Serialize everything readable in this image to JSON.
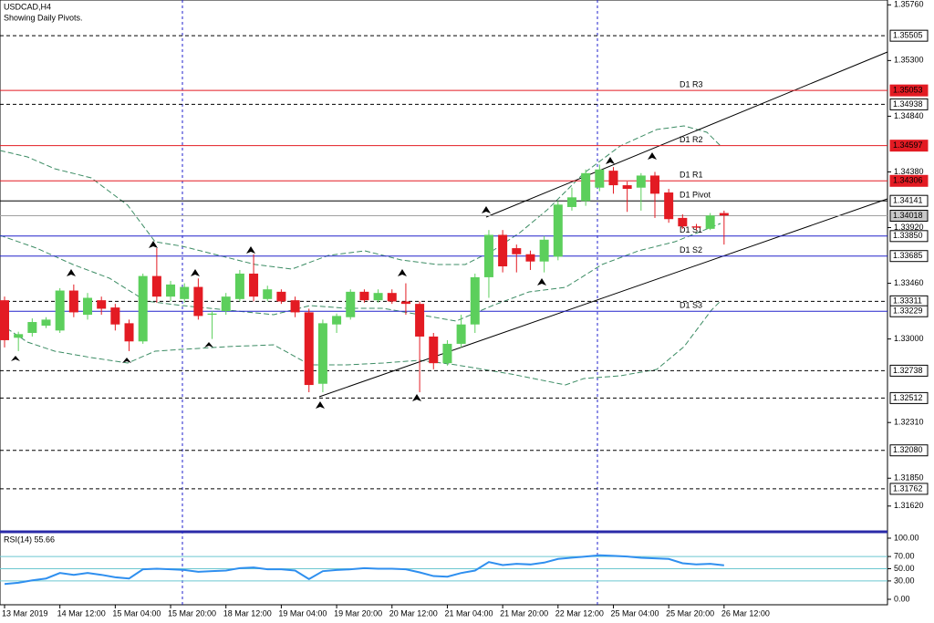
{
  "chart_data": [
    {
      "type": "candlestick",
      "title": "USDCAD,H4",
      "subtitle": "Showing Daily Pivots.",
      "up_color": "#5ccf5c",
      "down_color": "#e31b23",
      "categories": [
        "13 Mar 2019",
        null,
        null,
        null,
        "14 Mar 12:00",
        null,
        null,
        null,
        "15 Mar 04:00",
        null,
        null,
        null,
        "15 Mar 20:00",
        null,
        null,
        null,
        "18 Mar 12:00",
        null,
        null,
        null,
        "19 Mar 04:00",
        null,
        null,
        null,
        "19 Mar 20:00",
        null,
        null,
        null,
        "20 Mar 12:00",
        null,
        null,
        null,
        "21 Mar 04:00",
        null,
        null,
        null,
        "21 Mar 20:00",
        null,
        null,
        null,
        "22 Mar 12:00",
        null,
        null,
        null,
        "25 Mar 04:00",
        null,
        null,
        null,
        "25 Mar 20:00",
        null,
        null,
        null,
        "26 Mar 12:00"
      ],
      "open": [
        1.3332,
        1.3301,
        1.3305,
        1.3311,
        1.3307,
        1.334,
        1.332,
        1.3332,
        1.3326,
        1.3313,
        1.3298,
        1.3352,
        1.3335,
        1.3333,
        1.3343,
        1.332,
        1.3323,
        1.3333,
        1.3354,
        1.3333,
        1.3339,
        1.3332,
        1.3322,
        1.3263,
        1.3312,
        1.3318,
        1.3339,
        1.3332,
        1.3338,
        1.3331,
        1.3329,
        1.3302,
        1.328,
        1.3296,
        1.3312,
        1.3351,
        1.3386,
        1.3375,
        1.337,
        1.3364,
        1.3368,
        1.3409,
        1.3414,
        1.3425,
        1.3439,
        1.3427,
        1.3425,
        1.3435,
        1.3421,
        1.34,
        1.3393,
        1.3391,
        1.3404
      ],
      "high": [
        1.3335,
        1.3306,
        1.3317,
        1.3318,
        1.3342,
        1.3345,
        1.3338,
        1.3335,
        1.3329,
        1.3316,
        1.3354,
        1.3375,
        1.3348,
        1.3346,
        1.335,
        1.3323,
        1.3338,
        1.3357,
        1.337,
        1.3344,
        1.3341,
        1.3335,
        1.3325,
        1.3316,
        1.3321,
        1.3341,
        1.3341,
        1.3341,
        1.3341,
        1.3346,
        1.3331,
        1.3305,
        1.3299,
        1.332,
        1.3354,
        1.339,
        1.339,
        1.3378,
        1.3373,
        1.3385,
        1.3414,
        1.3425,
        1.344,
        1.3444,
        1.3442,
        1.343,
        1.3437,
        1.3438,
        1.3424,
        1.3403,
        1.3395,
        1.3404,
        1.3406
      ],
      "low": [
        1.3293,
        1.329,
        1.3302,
        1.3309,
        1.3305,
        1.3318,
        1.3316,
        1.332,
        1.3307,
        1.329,
        1.3296,
        1.333,
        1.3331,
        1.333,
        1.3316,
        1.33,
        1.332,
        1.3331,
        1.3331,
        1.3331,
        1.3329,
        1.3318,
        1.3256,
        1.3256,
        1.3305,
        1.3316,
        1.333,
        1.333,
        1.3329,
        1.332,
        1.3256,
        1.3275,
        1.3278,
        1.3293,
        1.3305,
        1.3334,
        1.3355,
        1.3355,
        1.3357,
        1.3355,
        1.3365,
        1.3406,
        1.341,
        1.3422,
        1.342,
        1.3405,
        1.3406,
        1.34,
        1.3396,
        1.3391,
        1.339,
        1.339,
        1.3378
      ],
      "close": [
        1.3299,
        1.3304,
        1.3314,
        1.3316,
        1.334,
        1.3322,
        1.3334,
        1.3325,
        1.3312,
        1.3298,
        1.3352,
        1.3335,
        1.3345,
        1.3343,
        1.3319,
        1.3321,
        1.3335,
        1.3354,
        1.3335,
        1.3341,
        1.3331,
        1.3322,
        1.3262,
        1.3313,
        1.3319,
        1.3339,
        1.3332,
        1.3338,
        1.3331,
        1.3329,
        1.3302,
        1.328,
        1.3296,
        1.3312,
        1.3351,
        1.3386,
        1.336,
        1.337,
        1.3364,
        1.3382,
        1.3411,
        1.3417,
        1.3437,
        1.344,
        1.3427,
        1.3424,
        1.3435,
        1.342,
        1.3399,
        1.3393,
        1.3392,
        1.3402,
        1.3402
      ],
      "ylim": [
        1.3143,
        1.358
      ],
      "yticks": [
        {
          "value": 1.3576,
          "label": "1.35760"
        },
        {
          "value": 1.353,
          "label": "1.35300"
        },
        {
          "value": 1.3484,
          "label": "1.34840"
        },
        {
          "value": 1.3438,
          "label": "1.34380"
        },
        {
          "value": 1.3392,
          "label": "1.33920"
        },
        {
          "value": 1.3346,
          "label": "1.33460"
        },
        {
          "value": 1.33,
          "label": "1.33000"
        },
        {
          "value": 1.3231,
          "label": "1.32310"
        },
        {
          "value": 1.3185,
          "label": "1.31850"
        },
        {
          "value": 1.3162,
          "label": "1.31620"
        }
      ],
      "levels": [
        {
          "value": 1.35505,
          "label": "1.35505",
          "color": "#000000",
          "style": "dashed"
        },
        {
          "value": 1.35053,
          "label": "1.35053",
          "color": "#e31b23",
          "style": "solid",
          "name": "D1 R3"
        },
        {
          "value": 1.34938,
          "label": "1.34938",
          "color": "#000000",
          "style": "dashed"
        },
        {
          "value": 1.34597,
          "label": "1.34597",
          "color": "#e31b23",
          "style": "solid",
          "name": "D1 R2"
        },
        {
          "value": 1.34306,
          "label": "1.34306",
          "color": "#e31b23",
          "style": "solid",
          "name": "D1 R1"
        },
        {
          "value": 1.34141,
          "label": "1.34141",
          "color": "#000000",
          "style": "solid",
          "name": "D1 Pivot"
        },
        {
          "value": 1.34018,
          "label": "1.34018",
          "color": "#a0a0a0",
          "style": "solid"
        },
        {
          "value": 1.3385,
          "label": "1.33850",
          "color": "#2222cc",
          "style": "solid",
          "name": "D1 S1"
        },
        {
          "value": 1.33685,
          "label": "1.33685",
          "color": "#2222cc",
          "style": "solid",
          "name": "D1 S2"
        },
        {
          "value": 1.33311,
          "label": "1.33311",
          "color": "#000000",
          "style": "dashed"
        },
        {
          "value": 1.33229,
          "label": "1.33229",
          "color": "#2222cc",
          "style": "solid",
          "name": "D1 S3"
        },
        {
          "value": 1.32738,
          "label": "1.32738",
          "color": "#000000",
          "style": "dashed"
        },
        {
          "value": 1.32512,
          "label": "1.32512",
          "color": "#000000",
          "style": "dashed"
        },
        {
          "value": 1.3208,
          "label": "1.32080",
          "color": "#000000",
          "style": "dashed"
        },
        {
          "value": 1.31762,
          "label": "1.31762",
          "color": "#000000",
          "style": "dashed"
        }
      ]
    },
    {
      "type": "line",
      "title": "RSI(14) 55.66",
      "color": "#2f8fef",
      "values": [
        25,
        27,
        31,
        34,
        43,
        40,
        43,
        40,
        36,
        34,
        49,
        50,
        49,
        48,
        45,
        46,
        47,
        51,
        52,
        49,
        49,
        47,
        33,
        46,
        48,
        49,
        51,
        50,
        50,
        49,
        44,
        38,
        37,
        43,
        47,
        61,
        56,
        58,
        57,
        60,
        66,
        68,
        70,
        72,
        71,
        70,
        68,
        67,
        66,
        59,
        57,
        58,
        55.66
      ],
      "ylim": [
        0,
        100
      ],
      "yticks": [
        {
          "value": 100,
          "label": "100.00"
        },
        {
          "value": 70,
          "label": "70.00"
        },
        {
          "value": 50,
          "label": "50.00"
        },
        {
          "value": 30,
          "label": "30.00"
        },
        {
          "value": 0,
          "label": "0.00"
        }
      ],
      "levels": [
        70,
        50,
        30
      ],
      "level_color": "#6cc8d0"
    }
  ]
}
